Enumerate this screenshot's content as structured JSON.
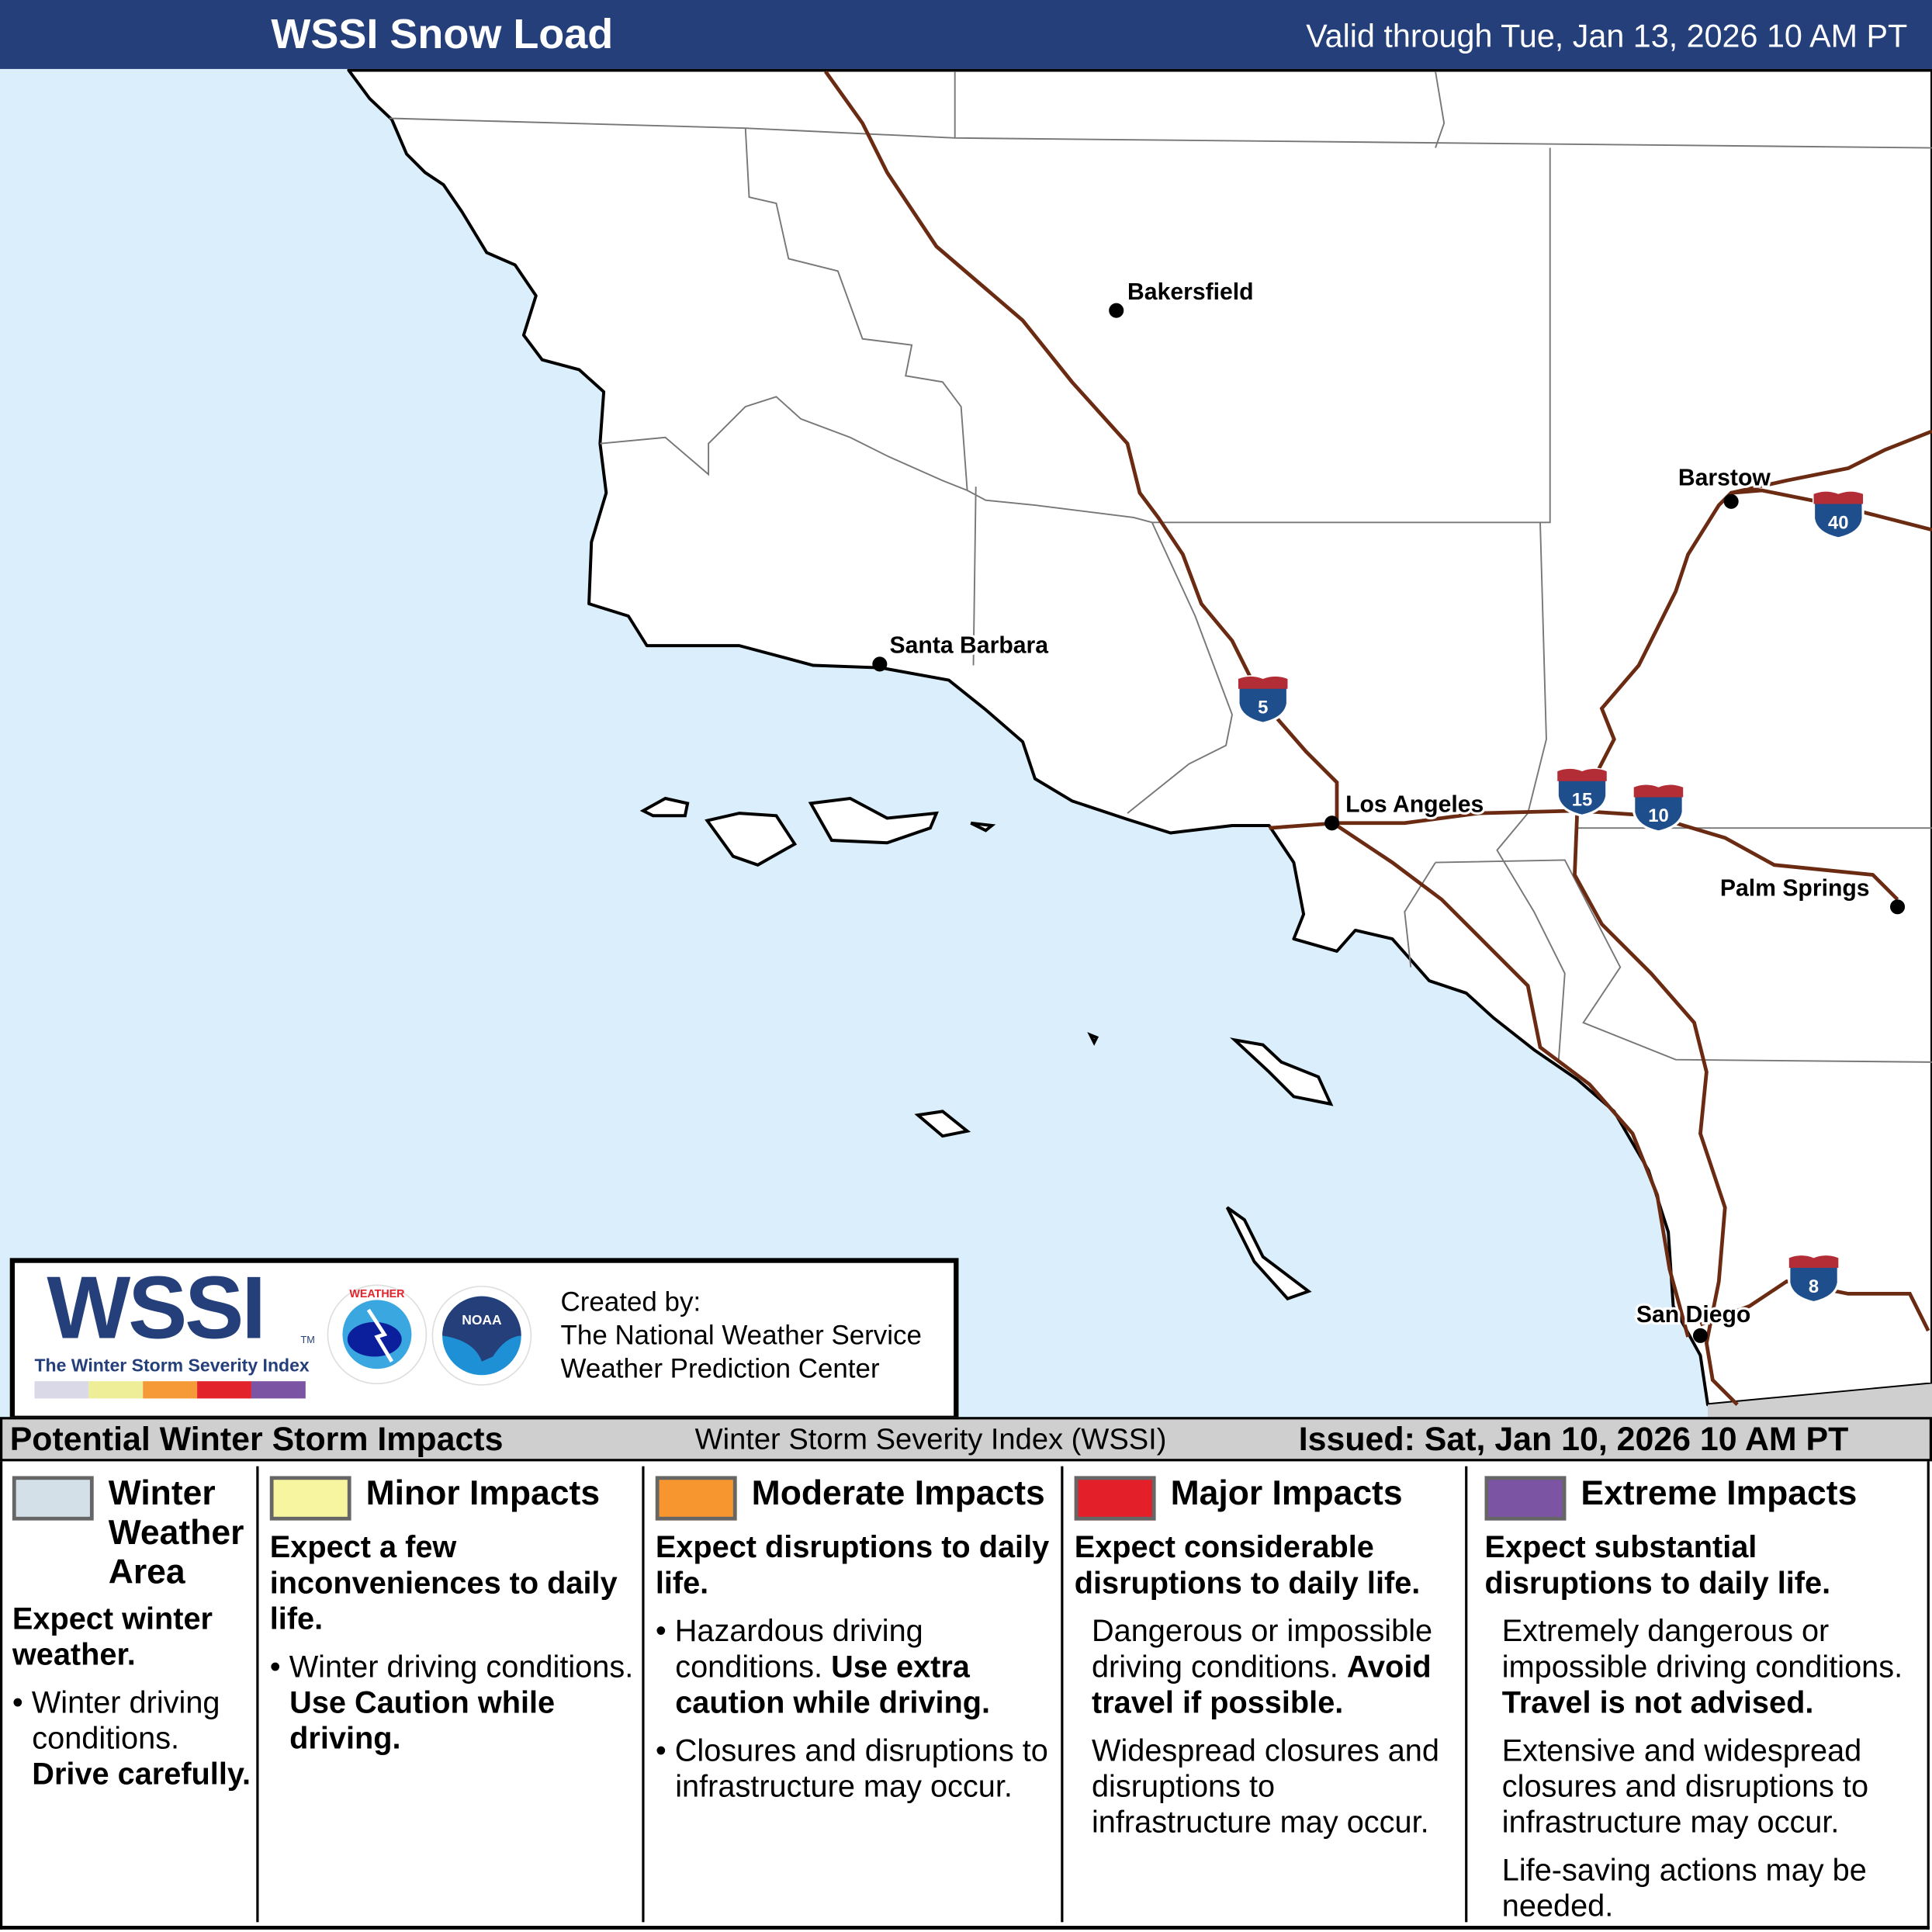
{
  "header": {
    "title": "WSSI Snow Load",
    "valid": "Valid through Tue, Jan 13, 2026 10 AM PT"
  },
  "map": {
    "colors": {
      "ocean": "#dbeefb",
      "land": "#ffffff",
      "roads": "#6b2a12",
      "shield_blue": "#1f4e8c",
      "shield_red": "#b32d36"
    },
    "cities": [
      {
        "name": "Bakersfield"
      },
      {
        "name": "Santa Barbara"
      },
      {
        "name": "Los Angeles"
      },
      {
        "name": "Barstow"
      },
      {
        "name": "Palm Springs"
      },
      {
        "name": "San Diego"
      }
    ],
    "interstates": [
      "5",
      "15",
      "10",
      "40",
      "8"
    ]
  },
  "logo": {
    "wssi": "WSSI",
    "tm": "TM",
    "subtitle": "The Winter Storm Severity Index",
    "nws": "NATIONAL WEATHER SERVICE",
    "noaa": "NOAA",
    "created_by": "Created by:",
    "org1": "The National Weather Service",
    "org2": "Weather Prediction Center",
    "bar_colors": [
      "#d9d9e8",
      "#eeee99",
      "#f59a36",
      "#e3232b",
      "#7b54a3"
    ]
  },
  "band": {
    "left": "Potential Winter Storm Impacts",
    "center": "Winter Storm Severity Index (WSSI)",
    "right": "Issued: Sat, Jan 10, 2026 10 AM PT"
  },
  "legend": [
    {
      "title": "Winter Weather Area",
      "color": "#d3e0e8",
      "summary": "Expect winter weather.",
      "bullet": "Winter driving conditions.",
      "bullet_bold": "Drive carefully."
    },
    {
      "title": "Minor Impacts",
      "color": "#f8f5a0",
      "summary": "Expect a few inconveniences to daily life.",
      "bullet": "Winter driving conditions.",
      "bullet_bold": "Use Caution while driving."
    },
    {
      "title": "Moderate Impacts",
      "color": "#f7962f",
      "summary": "Expect disruptions to daily life.",
      "bullet": "Hazardous driving conditions.",
      "bullet_bold": "Use extra caution while driving.",
      "bullet2": "Closures and disruptions to infrastructure may occur."
    },
    {
      "title": "Major Impacts",
      "color": "#e3202a",
      "summary": "Expect considerable disruptions to daily life.",
      "p1": "Dangerous or impossible driving conditions.",
      "p1_bold": "Avoid travel if possible.",
      "p2": "Widespread closures and disruptions to infrastructure may occur."
    },
    {
      "title": "Extreme Impacts",
      "color": "#7b55a3",
      "summary": "Expect substantial disruptions to daily life.",
      "p1": "Extremely dangerous or impossible driving conditions.",
      "p1_bold": "Travel is not advised.",
      "p2": "Extensive and widespread closures and disruptions to infrastructure may occur.",
      "p3": "Life-saving actions may be needed."
    }
  ]
}
